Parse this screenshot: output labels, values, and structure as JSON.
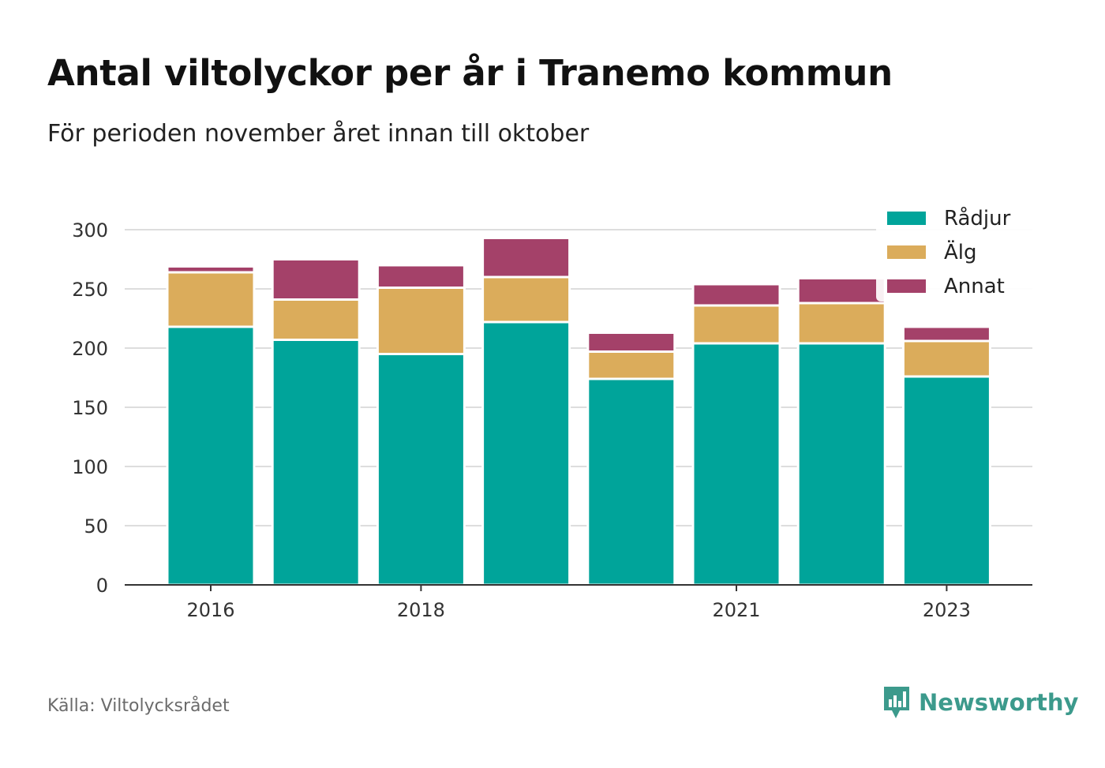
{
  "title": "Antal viltolyckor per år i Tranemo kommun",
  "subtitle": "För perioden november året innan till oktober",
  "source": "Källa: Viltolycksrådet",
  "brand": "Newsworthy",
  "colors": {
    "Rådjur": "#00a49a",
    "Älg": "#dbac5b",
    "Annat": "#a44169",
    "axis": "#333333",
    "grid": "#dddddd",
    "brand": "#3c9a8c"
  },
  "chart_data": {
    "type": "bar",
    "stacked": true,
    "categories": [
      "2016",
      "2017",
      "2018",
      "2019",
      "2020",
      "2021",
      "2022",
      "2023"
    ],
    "x_tick_labels": [
      "2016",
      "2018",
      "2021",
      "2023"
    ],
    "series": [
      {
        "name": "Rådjur",
        "values": [
          218,
          207,
          195,
          222,
          174,
          204,
          204,
          176
        ]
      },
      {
        "name": "Älg",
        "values": [
          46,
          34,
          56,
          38,
          23,
          32,
          34,
          30
        ]
      },
      {
        "name": "Annat",
        "values": [
          5,
          34,
          19,
          33,
          16,
          18,
          21,
          12
        ]
      }
    ],
    "y_ticks": [
      0,
      50,
      100,
      150,
      200,
      250,
      300
    ],
    "ylim": [
      0,
      300
    ],
    "grid": true,
    "legend_position": "top-right"
  }
}
